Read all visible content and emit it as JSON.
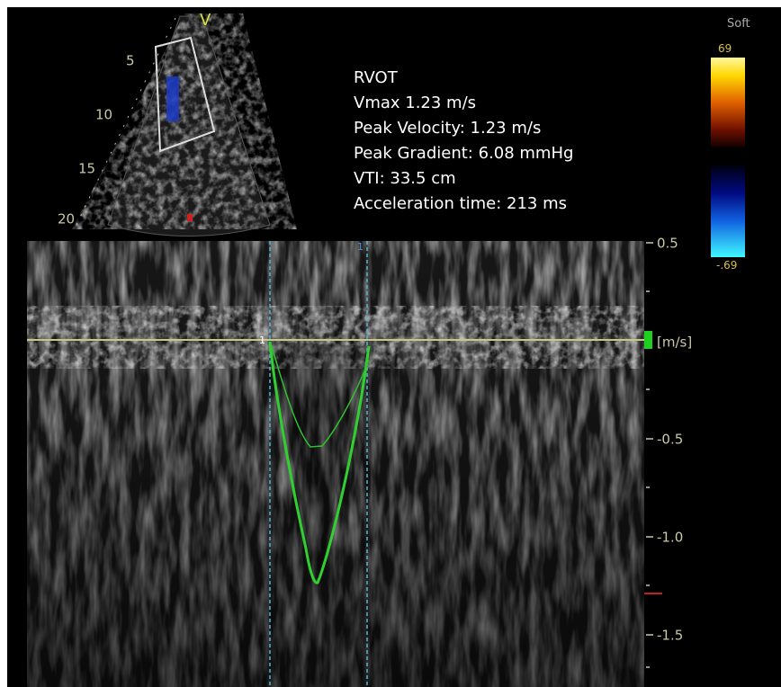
{
  "sector": {
    "marker": "V",
    "depth_labels": [
      "5",
      "10",
      "15",
      "20"
    ]
  },
  "measurements": {
    "view": "RVOT",
    "lines": [
      "Vmax 1.23 m/s",
      "Peak Velocity: 1.23 m/s",
      "Peak Gradient: 6.08 mmHg",
      "VTI: 33.5 cm",
      "Acceleration time: 213 ms"
    ]
  },
  "color_bar": {
    "preset": "Soft",
    "max_label": "69",
    "min_label": "-.69"
  },
  "doppler": {
    "scale_labels": [
      "0.5",
      "[m/s]",
      "-0.5",
      "-1.0",
      "-1.5"
    ],
    "caliper_labels": [
      "1",
      "1"
    ]
  }
}
